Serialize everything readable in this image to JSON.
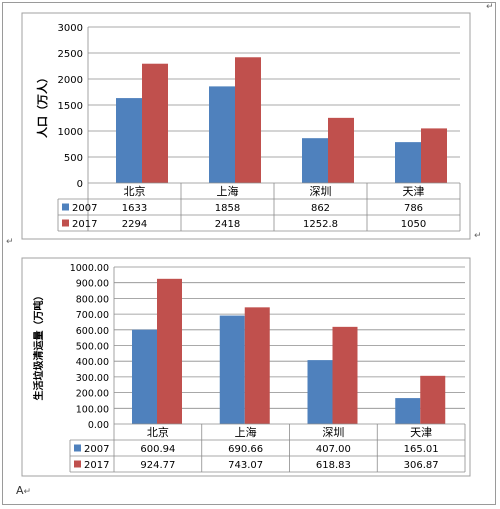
{
  "footer_text": "A",
  "chart_data": [
    {
      "type": "bar",
      "title": "",
      "categories": [
        "北京",
        "上海",
        "深圳",
        "天津"
      ],
      "series": [
        {
          "name": "2007",
          "values": [
            1633,
            1858,
            862,
            786
          ],
          "labels": [
            "1633",
            "1858",
            "862",
            "786"
          ],
          "color": "#4f81bd"
        },
        {
          "name": "2017",
          "values": [
            2294,
            2418,
            1252.8,
            1050
          ],
          "labels": [
            "2294",
            "2418",
            "1252.8",
            "1050"
          ],
          "color": "#c0504d"
        }
      ],
      "xlabel": "",
      "ylabel": "人口（万人）",
      "ylim": [
        0,
        3000
      ],
      "yticks": [
        "0",
        "500",
        "1000",
        "1500",
        "2000",
        "2500",
        "3000"
      ],
      "ystep": 500,
      "grid": true,
      "legend": "data-table"
    },
    {
      "type": "bar",
      "title": "",
      "categories": [
        "北京",
        "上海",
        "深圳",
        "天津"
      ],
      "series": [
        {
          "name": "2007",
          "values": [
            600.94,
            690.66,
            407.0,
            165.01
          ],
          "labels": [
            "600.94",
            "690.66",
            "407.00",
            "165.01"
          ],
          "color": "#4f81bd"
        },
        {
          "name": "2017",
          "values": [
            924.77,
            743.07,
            618.83,
            306.87
          ],
          "labels": [
            "924.77",
            "743.07",
            "618.83",
            "306.87"
          ],
          "color": "#c0504d"
        }
      ],
      "xlabel": "",
      "ylabel": "生活垃圾清运量（万吨）",
      "ylim": [
        0,
        1000
      ],
      "yticks": [
        "0.00",
        "100.00",
        "200.00",
        "300.00",
        "400.00",
        "500.00",
        "600.00",
        "700.00",
        "800.00",
        "900.00",
        "1000.00"
      ],
      "ystep": 100,
      "grid": true,
      "legend": "data-table"
    }
  ]
}
